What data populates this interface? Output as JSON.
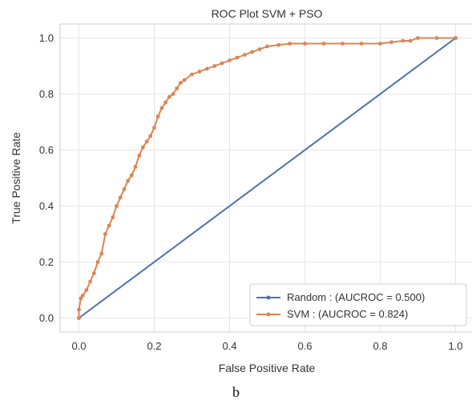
{
  "chart_data": {
    "type": "line",
    "title": "ROC Plot SVM + PSO",
    "xlabel": "False Positive Rate",
    "ylabel": "True Positive Rate",
    "xlim": [
      -0.05,
      1.05
    ],
    "ylim": [
      -0.05,
      1.05
    ],
    "x_ticks": [
      0.0,
      0.2,
      0.4,
      0.6,
      0.8,
      1.0
    ],
    "y_ticks": [
      0.0,
      0.2,
      0.4,
      0.6,
      0.8,
      1.0
    ],
    "x_tick_labels": [
      "0.0",
      "0.2",
      "0.4",
      "0.6",
      "0.8",
      "1.0"
    ],
    "y_tick_labels": [
      "0.0",
      "0.2",
      "0.4",
      "0.6",
      "0.8",
      "1.0"
    ],
    "grid": true,
    "legend_position": "bottom-right",
    "series": [
      {
        "name": "Random : (AUCROC = 0.500)",
        "color": "#4c72b0",
        "marker": "dot",
        "points": [
          [
            0.0,
            0.0
          ],
          [
            1.0,
            1.0
          ]
        ]
      },
      {
        "name": "SVM : (AUCROC = 0.824)",
        "color": "#dd8452",
        "marker": "dot",
        "points": [
          [
            0.0,
            0.0
          ],
          [
            0.0,
            0.03
          ],
          [
            0.005,
            0.07
          ],
          [
            0.01,
            0.08
          ],
          [
            0.02,
            0.1
          ],
          [
            0.03,
            0.13
          ],
          [
            0.04,
            0.16
          ],
          [
            0.05,
            0.2
          ],
          [
            0.06,
            0.23
          ],
          [
            0.07,
            0.3
          ],
          [
            0.08,
            0.33
          ],
          [
            0.09,
            0.36
          ],
          [
            0.1,
            0.4
          ],
          [
            0.11,
            0.43
          ],
          [
            0.12,
            0.46
          ],
          [
            0.13,
            0.49
          ],
          [
            0.14,
            0.51
          ],
          [
            0.15,
            0.54
          ],
          [
            0.16,
            0.58
          ],
          [
            0.17,
            0.61
          ],
          [
            0.18,
            0.63
          ],
          [
            0.19,
            0.65
          ],
          [
            0.2,
            0.68
          ],
          [
            0.21,
            0.72
          ],
          [
            0.22,
            0.75
          ],
          [
            0.23,
            0.77
          ],
          [
            0.24,
            0.79
          ],
          [
            0.25,
            0.8
          ],
          [
            0.26,
            0.82
          ],
          [
            0.27,
            0.84
          ],
          [
            0.28,
            0.85
          ],
          [
            0.3,
            0.87
          ],
          [
            0.32,
            0.88
          ],
          [
            0.34,
            0.89
          ],
          [
            0.36,
            0.9
          ],
          [
            0.38,
            0.91
          ],
          [
            0.4,
            0.92
          ],
          [
            0.42,
            0.93
          ],
          [
            0.44,
            0.94
          ],
          [
            0.46,
            0.95
          ],
          [
            0.48,
            0.96
          ],
          [
            0.5,
            0.97
          ],
          [
            0.53,
            0.975
          ],
          [
            0.56,
            0.98
          ],
          [
            0.6,
            0.98
          ],
          [
            0.65,
            0.98
          ],
          [
            0.7,
            0.98
          ],
          [
            0.75,
            0.98
          ],
          [
            0.8,
            0.98
          ],
          [
            0.83,
            0.985
          ],
          [
            0.86,
            0.99
          ],
          [
            0.88,
            0.99
          ],
          [
            0.9,
            1.0
          ],
          [
            0.95,
            1.0
          ],
          [
            1.0,
            1.0
          ]
        ]
      }
    ]
  },
  "caption": "b"
}
